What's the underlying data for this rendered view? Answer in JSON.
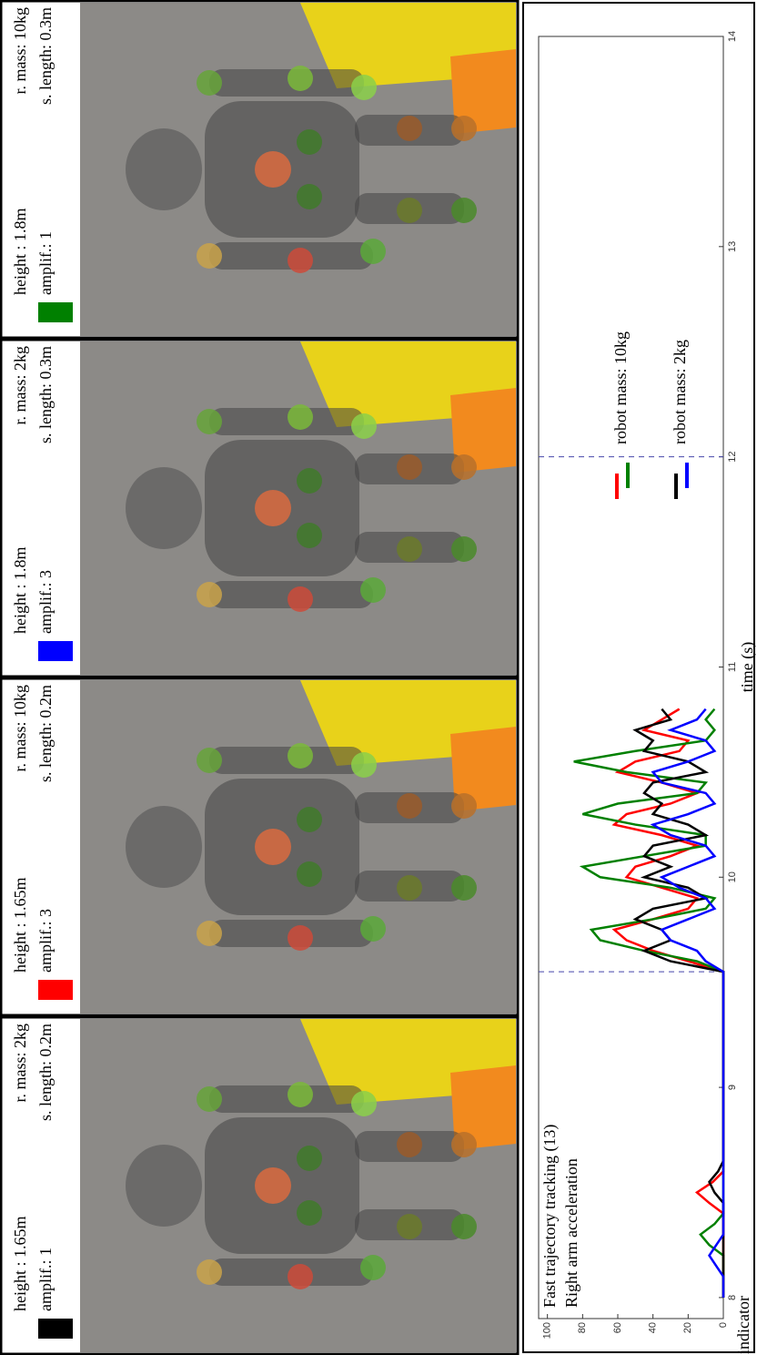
{
  "panels": [
    {
      "height": "height : 1.65m",
      "mass": "r. mass: 2kg",
      "amplif": "amplif.: 1",
      "length": "s. length: 0.2m",
      "color": "#000000"
    },
    {
      "height": "height : 1.65m",
      "mass": "r. mass: 10kg",
      "amplif": "amplif.: 3",
      "length": "s. length: 0.2m",
      "color": "#ff0000"
    },
    {
      "height": "height : 1.8m",
      "mass": "r. mass: 2kg",
      "amplif": "amplif.: 3",
      "length": "s. length: 0.3m",
      "color": "#0000ff"
    },
    {
      "height": "height : 1.8m",
      "mass": "r. mass: 10kg",
      "amplif": "amplif.: 1",
      "length": "s. length: 0.3m",
      "color": "#008000"
    }
  ],
  "chart_data": {
    "type": "line",
    "annotations": [
      "Fast trajectory tracking (13)",
      "Right arm acceleration"
    ],
    "x_label": "time (s)",
    "y_label": "indicator",
    "xlim": [
      7.9,
      14
    ],
    "xticks": [
      8,
      9,
      10,
      11,
      12,
      13,
      14
    ],
    "ylim": [
      0,
      105
    ],
    "yticks": [
      0,
      20,
      40,
      60,
      80,
      100
    ],
    "vlines": [
      9.55,
      12
    ],
    "legend": [
      {
        "label": "robot mass: 10kg",
        "colors": [
          "#ff0000",
          "#008000"
        ]
      },
      {
        "label": "robot mass: 2kg",
        "colors": [
          "#000000",
          "#0000ff"
        ]
      }
    ],
    "x": [
      8.0,
      8.05,
      8.1,
      8.15,
      8.2,
      8.25,
      8.3,
      8.35,
      8.4,
      8.45,
      8.5,
      8.55,
      8.6,
      8.65,
      8.7,
      8.75,
      8.8,
      8.85,
      8.9,
      8.95,
      9.0,
      9.05,
      9.1,
      9.15,
      9.2,
      9.25,
      9.3,
      9.35,
      9.4,
      9.45,
      9.5,
      9.55,
      9.6,
      9.65,
      9.7,
      9.75,
      9.8,
      9.85,
      9.9,
      9.95,
      10.0,
      10.05,
      10.1,
      10.15,
      10.2,
      10.25,
      10.3,
      10.35,
      10.4,
      10.45,
      10.5,
      10.55,
      10.6,
      10.65,
      10.7,
      10.75,
      10.8
    ],
    "series": [
      {
        "color": "#ff0000",
        "values": [
          0,
          0,
          0,
          0,
          0,
          0,
          0,
          0,
          0,
          8,
          15,
          6,
          0,
          0,
          0,
          0,
          0,
          0,
          0,
          0,
          0,
          0,
          0,
          0,
          0,
          0,
          0,
          0,
          0,
          0,
          0,
          0,
          20,
          40,
          55,
          62,
          40,
          20,
          15,
          35,
          55,
          50,
          30,
          15,
          35,
          62,
          55,
          30,
          15,
          35,
          60,
          50,
          25,
          20,
          45,
          35,
          25
        ]
      },
      {
        "color": "#008000",
        "values": [
          0,
          0,
          0,
          0,
          0,
          8,
          13,
          5,
          0,
          0,
          0,
          0,
          0,
          0,
          0,
          0,
          0,
          0,
          0,
          0,
          0,
          0,
          0,
          0,
          0,
          0,
          0,
          0,
          0,
          0,
          0,
          0,
          15,
          45,
          70,
          75,
          40,
          10,
          5,
          30,
          70,
          80,
          45,
          10,
          10,
          50,
          80,
          60,
          15,
          10,
          55,
          85,
          50,
          10,
          5,
          10,
          5
        ]
      },
      {
        "color": "#000000",
        "values": [
          0,
          0,
          0,
          0,
          0,
          0,
          0,
          0,
          0,
          0,
          5,
          8,
          3,
          0,
          0,
          0,
          0,
          0,
          0,
          0,
          0,
          0,
          0,
          0,
          0,
          0,
          0,
          0,
          0,
          0,
          0,
          0,
          30,
          45,
          30,
          35,
          50,
          40,
          10,
          20,
          45,
          30,
          45,
          40,
          10,
          20,
          40,
          35,
          45,
          40,
          10,
          20,
          45,
          40,
          50,
          30,
          35
        ]
      },
      {
        "color": "#0000ff",
        "values": [
          0,
          0,
          0,
          4,
          8,
          4,
          0,
          0,
          0,
          0,
          0,
          0,
          0,
          0,
          0,
          0,
          0,
          0,
          0,
          0,
          0,
          0,
          0,
          0,
          0,
          0,
          0,
          0,
          0,
          0,
          0,
          0,
          10,
          15,
          30,
          35,
          20,
          5,
          10,
          25,
          35,
          20,
          5,
          10,
          30,
          40,
          20,
          5,
          10,
          35,
          40,
          20,
          5,
          10,
          30,
          15,
          10
        ]
      }
    ]
  }
}
